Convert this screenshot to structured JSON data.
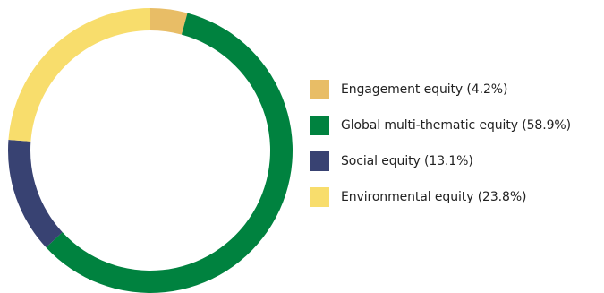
{
  "chart_data": {
    "type": "pie",
    "title": "",
    "series": [
      {
        "name": "Engagement equity",
        "label": "Engagement equity (4.2%)",
        "value": 4.2,
        "color": "#E8BD66"
      },
      {
        "name": "Global multi-thematic equity",
        "label": "Global multi-thematic equity (58.9%)",
        "value": 58.9,
        "color": "#00823F"
      },
      {
        "name": "Social equity",
        "label": "Social equity (13.1%)",
        "value": 13.1,
        "color": "#384272"
      },
      {
        "name": "Environmental equity",
        "label": "Environmental equity (23.8%)",
        "value": 23.8,
        "color": "#F8DD6C"
      }
    ],
    "legend_position": "right"
  }
}
